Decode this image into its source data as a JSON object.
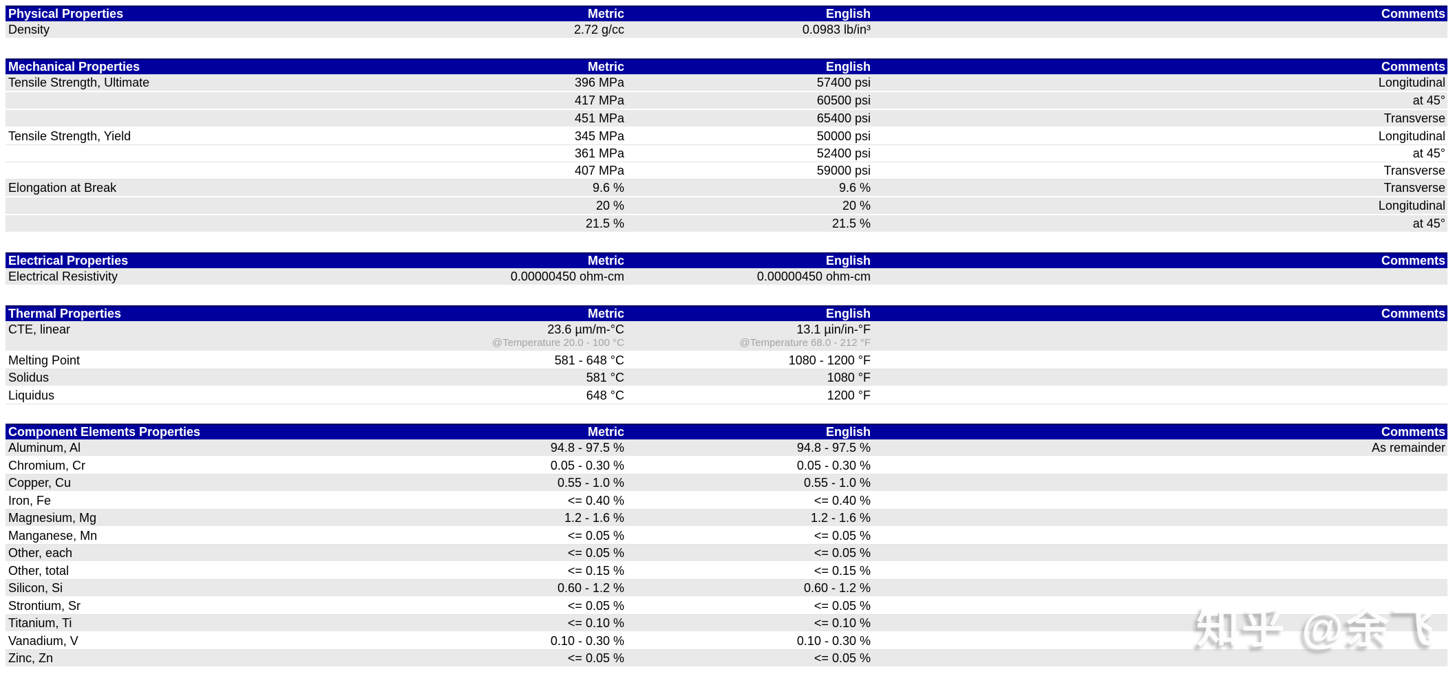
{
  "page": {
    "watermark": {
      "text": "知乎 @余飞"
    },
    "colors": {
      "header_bg": "#00009E",
      "header_top_border": "#000060",
      "header_text": "#FFFFFF",
      "alt_row_bg": "#E9E9E9",
      "note_text": "#A3A3A3",
      "body_text": "#000000"
    }
  },
  "columns": {
    "metric": "Metric",
    "english": "English",
    "comments": "Comments"
  },
  "sections": [
    {
      "title": "Physical Properties",
      "rows": [
        {
          "property": "Density",
          "metric": "2.72 g/cc",
          "english": "0.0983 lb/in³",
          "comment": "",
          "shade": "gray"
        }
      ]
    },
    {
      "title": "Mechanical Properties",
      "rows": [
        {
          "property": "Tensile Strength, Ultimate",
          "metric": "396 MPa",
          "english": "57400 psi",
          "comment": "Longitudinal",
          "shade": "gray"
        },
        {
          "property": "",
          "metric": "417 MPa",
          "english": "60500 psi",
          "comment": "at 45°",
          "shade": "gray"
        },
        {
          "property": "",
          "metric": "451 MPa",
          "english": "65400 psi",
          "comment": "Transverse",
          "shade": "gray"
        },
        {
          "property": "Tensile Strength, Yield",
          "metric": "345 MPa",
          "english": "50000 psi",
          "comment": "Longitudinal",
          "shade": "white"
        },
        {
          "property": "",
          "metric": "361 MPa",
          "english": "52400 psi",
          "comment": "at 45°",
          "shade": "white"
        },
        {
          "property": "",
          "metric": "407 MPa",
          "english": "59000 psi",
          "comment": "Transverse",
          "shade": "white"
        },
        {
          "property": "Elongation at Break",
          "metric": "9.6 %",
          "english": "9.6 %",
          "comment": "Transverse",
          "shade": "gray"
        },
        {
          "property": "",
          "metric": "20 %",
          "english": "20 %",
          "comment": "Longitudinal",
          "shade": "gray"
        },
        {
          "property": "",
          "metric": "21.5 %",
          "english": "21.5 %",
          "comment": "at 45°",
          "shade": "gray"
        }
      ]
    },
    {
      "title": "Electrical Properties",
      "rows": [
        {
          "property": "Electrical Resistivity",
          "metric": "0.00000450 ohm-cm",
          "english": "0.00000450 ohm-cm",
          "comment": "",
          "shade": "gray"
        }
      ]
    },
    {
      "title": "Thermal Properties",
      "rows": [
        {
          "property": "CTE, linear",
          "metric": "23.6 µm/m-°C",
          "metric_note": "@Temperature 20.0 - 100 °C",
          "english": "13.1 µin/in-°F",
          "english_note": "@Temperature 68.0 - 212 °F",
          "comment": "",
          "shade": "gray"
        },
        {
          "property": "Melting Point",
          "metric": "581 - 648 °C",
          "english": "1080 - 1200 °F",
          "comment": "",
          "shade": "white"
        },
        {
          "property": "Solidus",
          "metric": "581 °C",
          "english": "1080 °F",
          "comment": "",
          "shade": "gray"
        },
        {
          "property": "Liquidus",
          "metric": "648 °C",
          "english": "1200 °F",
          "comment": "",
          "shade": "white"
        }
      ]
    },
    {
      "title": "Component Elements Properties",
      "rows": [
        {
          "property": "Aluminum, Al",
          "metric": "94.8 - 97.5 %",
          "english": "94.8 - 97.5 %",
          "comment": "As remainder",
          "shade": "gray"
        },
        {
          "property": "Chromium, Cr",
          "metric": "0.05 - 0.30 %",
          "english": "0.05 - 0.30 %",
          "comment": "",
          "shade": "white"
        },
        {
          "property": "Copper, Cu",
          "metric": "0.55 - 1.0 %",
          "english": "0.55 - 1.0 %",
          "comment": "",
          "shade": "gray"
        },
        {
          "property": "Iron, Fe",
          "metric": "<= 0.40 %",
          "english": "<= 0.40 %",
          "comment": "",
          "shade": "white"
        },
        {
          "property": "Magnesium, Mg",
          "metric": "1.2 - 1.6 %",
          "english": "1.2 - 1.6 %",
          "comment": "",
          "shade": "gray"
        },
        {
          "property": "Manganese, Mn",
          "metric": "<= 0.05 %",
          "english": "<= 0.05 %",
          "comment": "",
          "shade": "white"
        },
        {
          "property": "Other, each",
          "metric": "<= 0.05 %",
          "english": "<= 0.05 %",
          "comment": "",
          "shade": "gray"
        },
        {
          "property": "Other, total",
          "metric": "<= 0.15 %",
          "english": "<= 0.15 %",
          "comment": "",
          "shade": "white"
        },
        {
          "property": "Silicon, Si",
          "metric": "0.60 - 1.2 %",
          "english": "0.60 - 1.2 %",
          "comment": "",
          "shade": "gray"
        },
        {
          "property": "Strontium, Sr",
          "metric": "<= 0.05 %",
          "english": "<= 0.05 %",
          "comment": "",
          "shade": "white"
        },
        {
          "property": "Titanium, Ti",
          "metric": "<= 0.10 %",
          "english": "<= 0.10 %",
          "comment": "",
          "shade": "gray"
        },
        {
          "property": "Vanadium, V",
          "metric": "0.10 - 0.30 %",
          "english": "0.10 - 0.30 %",
          "comment": "",
          "shade": "white"
        },
        {
          "property": "Zinc, Zn",
          "metric": "<= 0.05 %",
          "english": "<= 0.05 %",
          "comment": "",
          "shade": "gray"
        }
      ]
    }
  ]
}
